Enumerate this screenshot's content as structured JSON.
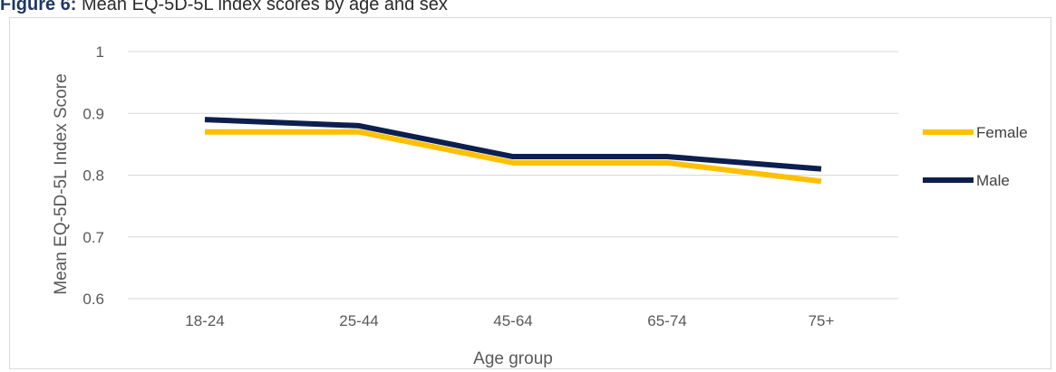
{
  "caption": {
    "label": "Figure 6:",
    "text": "Mean EQ-5D-5L index scores by age and sex"
  },
  "chart_data": {
    "type": "line",
    "categories": [
      "18-24",
      "25-44",
      "45-64",
      "65-74",
      "75+"
    ],
    "series": [
      {
        "name": "Female",
        "values": [
          0.87,
          0.87,
          0.82,
          0.82,
          0.79
        ],
        "color": "#ffc000"
      },
      {
        "name": "Male",
        "values": [
          0.89,
          0.88,
          0.83,
          0.83,
          0.81
        ],
        "color": "#0d1f4f"
      }
    ],
    "xlabel": "Age group",
    "ylabel": "Mean EQ-5D-5L Index Score",
    "ylim": [
      0.6,
      1.0
    ],
    "yticks": [
      "0.6",
      "0.7",
      "0.8",
      "0.9",
      "1"
    ],
    "grid": true,
    "legend_position": "right"
  }
}
